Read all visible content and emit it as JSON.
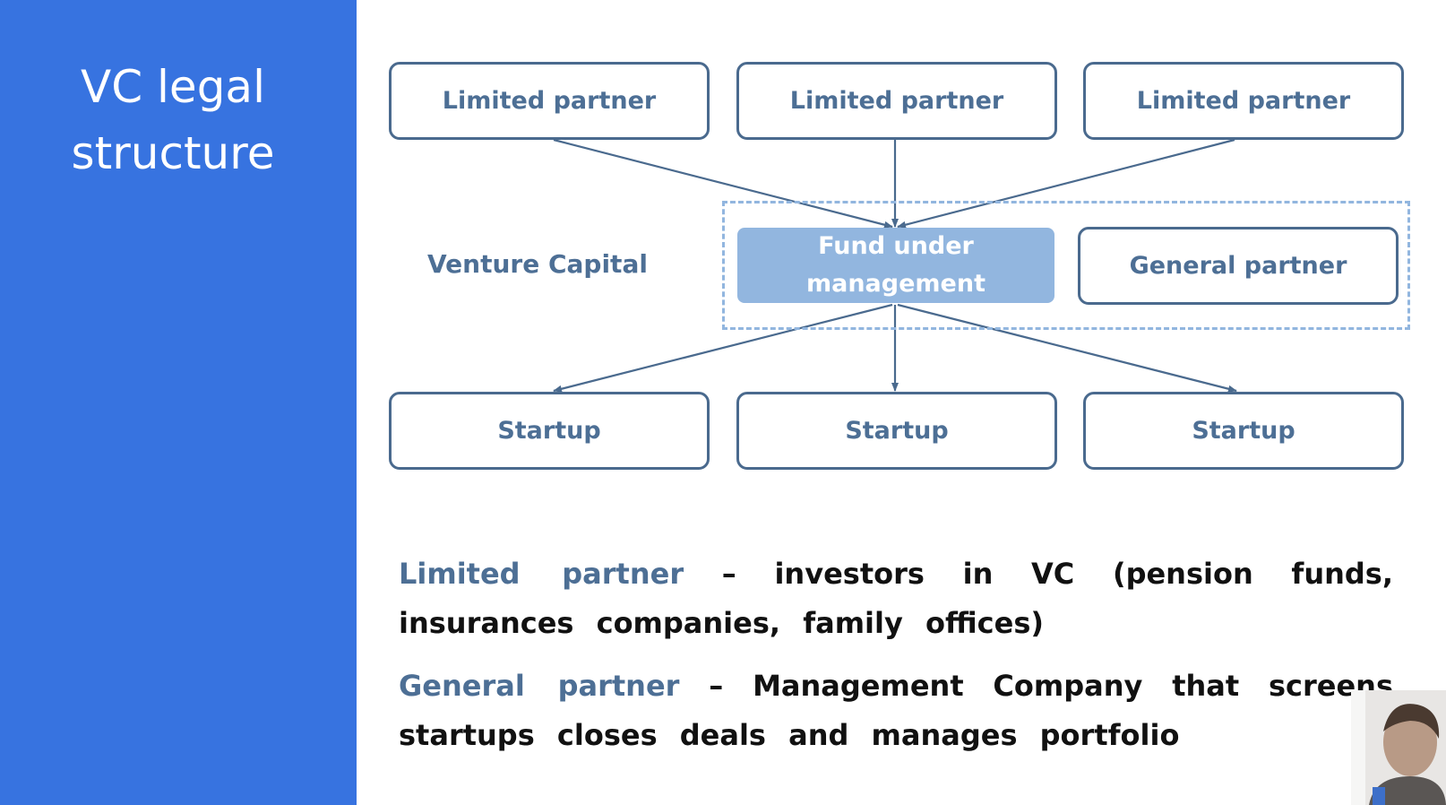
{
  "slide": {
    "title_line1": "VC legal",
    "title_line2": "structure"
  },
  "diagram": {
    "limited_partners": [
      "Limited partner",
      "Limited partner",
      "Limited partner"
    ],
    "vc_label": "Venture Capital",
    "fund": {
      "line1": "Fund under",
      "line2": "management"
    },
    "general_partner": "General partner",
    "startups": [
      "Startup",
      "Startup",
      "Startup"
    ]
  },
  "definitions": {
    "limited": {
      "term": "Limited partner",
      "text": " – investors in VC (pension funds, insurances companies, family offices)"
    },
    "general": {
      "term": "General partner",
      "text": " – Management Company that screens startups closes deals and manages portfolio"
    }
  },
  "colors": {
    "sidebar": "#3773e0",
    "box_border": "#4a6a8e",
    "box_text": "#4d6f95",
    "fund_fill": "#92b6df",
    "dashed_border": "#92b6df"
  }
}
